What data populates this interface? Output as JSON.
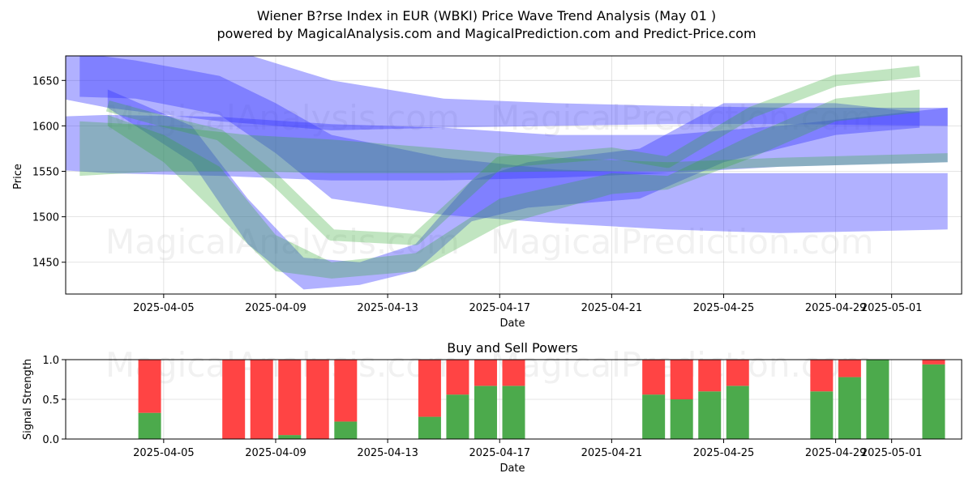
{
  "chart_data": [
    {
      "type": "area",
      "title": "Wiener B?rse Index in EUR (WBKI) Price Wave Trend Analysis (May 01 )",
      "subtitle": "powered by MagicalAnalysis.com and MagicalPrediction.com and Predict-Price.com",
      "xlabel": "Date",
      "ylabel": "Price",
      "x_tick_labels": [
        "2025-04-05",
        "2025-04-09",
        "2025-04-13",
        "2025-04-17",
        "2025-04-21",
        "2025-04-25",
        "2025-04-29",
        "2025-05-01"
      ],
      "y_tick_labels": [
        "1450",
        "1500",
        "1550",
        "1600",
        "1650"
      ],
      "xlim": [
        "2025-04-01 12:00",
        "2025-05-03 12:00"
      ],
      "ylim": [
        1415,
        1677
      ],
      "grid": true,
      "watermarks": [
        "MagicalAnalysis.com",
        "MagicalPrediction.com",
        "MagicalAnalysis.com",
        "MagicalPrediction.com"
      ],
      "colors": {
        "blue_band": "#3333ff",
        "green_band": "#33aa33"
      },
      "bands": [
        {
          "color": "blue",
          "x": [
            "2025-04-02",
            "2025-04-04",
            "2025-04-07",
            "2025-04-09",
            "2025-04-11",
            "2025-04-15",
            "2025-04-19",
            "2025-04-23",
            "2025-04-27",
            "2025-05-03"
          ],
          "upper": [
            1680,
            1672,
            1655,
            1625,
            1590,
            1565,
            1552,
            1548,
            1548,
            1548
          ],
          "lower": [
            1632,
            1630,
            1612,
            1570,
            1520,
            1502,
            1493,
            1486,
            1482,
            1486
          ]
        },
        {
          "color": "blue",
          "x": [
            "2025-04-01",
            "2025-04-03",
            "2025-04-07",
            "2025-04-11",
            "2025-04-15",
            "2025-04-19",
            "2025-04-23",
            "2025-04-27",
            "2025-05-03"
          ],
          "upper": [
            1690,
            1690,
            1688,
            1650,
            1630,
            1625,
            1622,
            1620,
            1620
          ],
          "lower": [
            1632,
            1620,
            1605,
            1595,
            1598,
            1600,
            1602,
            1602,
            1600
          ]
        },
        {
          "color": "blue",
          "x": [
            "2025-04-01",
            "2025-04-03",
            "2025-04-07",
            "2025-04-11",
            "2025-04-15",
            "2025-04-19",
            "2025-04-23",
            "2025-04-27",
            "2025-05-03"
          ],
          "upper": [
            1610,
            1612,
            1610,
            1602,
            1598,
            1590,
            1590,
            1600,
            1620
          ],
          "lower": [
            1552,
            1548,
            1545,
            1540,
            1540,
            1543,
            1548,
            1555,
            1560
          ]
        },
        {
          "color": "blue",
          "x": [
            "2025-04-03",
            "2025-04-06",
            "2025-04-08",
            "2025-04-10",
            "2025-04-12",
            "2025-04-14",
            "2025-04-16",
            "2025-04-18",
            "2025-04-22",
            "2025-04-25",
            "2025-04-29",
            "2025-05-02"
          ],
          "upper": [
            1640,
            1600,
            1520,
            1455,
            1450,
            1470,
            1540,
            1560,
            1575,
            1625,
            1625,
            1615
          ],
          "lower": [
            1620,
            1560,
            1470,
            1420,
            1425,
            1440,
            1495,
            1510,
            1520,
            1560,
            1590,
            1598
          ]
        },
        {
          "color": "green",
          "x": [
            "2025-04-02",
            "2025-04-05",
            "2025-04-08",
            "2025-04-11",
            "2025-04-15",
            "2025-04-19",
            "2025-04-23",
            "2025-04-27",
            "2025-05-03"
          ],
          "upper": [
            1605,
            1600,
            1590,
            1585,
            1575,
            1565,
            1560,
            1565,
            1570
          ],
          "lower": [
            1545,
            1550,
            1550,
            1548,
            1548,
            1550,
            1550,
            1555,
            1560
          ]
        },
        {
          "color": "green",
          "x": [
            "2025-04-03",
            "2025-04-05",
            "2025-04-07",
            "2025-04-09",
            "2025-04-11",
            "2025-04-14",
            "2025-04-17",
            "2025-04-21",
            "2025-04-23",
            "2025-04-26",
            "2025-04-29",
            "2025-05-02"
          ],
          "upper": [
            1622,
            1605,
            1590,
            1540,
            1480,
            1475,
            1560,
            1570,
            1560,
            1615,
            1650,
            1660
          ]
        },
        {
          "color": "green",
          "x": [
            "2025-04-03",
            "2025-04-05",
            "2025-04-07",
            "2025-04-09",
            "2025-04-11",
            "2025-04-14",
            "2025-04-17",
            "2025-04-21",
            "2025-04-23",
            "2025-04-26",
            "2025-04-29",
            "2025-05-02"
          ],
          "upper": [
            1612,
            1590,
            1555,
            1480,
            1450,
            1460,
            1520,
            1548,
            1545,
            1590,
            1630,
            1640
          ],
          "lower": [
            1600,
            1560,
            1500,
            1440,
            1432,
            1440,
            1490,
            1525,
            1530,
            1565,
            1605,
            1615
          ]
        }
      ]
    },
    {
      "type": "bar",
      "title": "Buy and Sell Powers",
      "xlabel": "Date",
      "ylabel": "Signal Strength",
      "x_tick_labels": [
        "2025-04-05",
        "2025-04-09",
        "2025-04-13",
        "2025-04-17",
        "2025-04-21",
        "2025-04-25",
        "2025-04-29",
        "2025-05-01"
      ],
      "y_tick_labels": [
        "0.0",
        "0.5",
        "1.0"
      ],
      "ylim": [
        0,
        1
      ],
      "grid": true,
      "colors": {
        "buy": "#4caa4c",
        "sell": "#ff4444"
      },
      "categories": [
        "2025-04-04",
        "2025-04-07",
        "2025-04-08",
        "2025-04-09",
        "2025-04-10",
        "2025-04-11",
        "2025-04-14",
        "2025-04-15",
        "2025-04-16",
        "2025-04-17",
        "2025-04-22",
        "2025-04-23",
        "2025-04-24",
        "2025-04-25",
        "2025-04-28",
        "2025-04-29",
        "2025-04-30",
        "2025-05-02"
      ],
      "series": [
        {
          "name": "Buy",
          "values": [
            0.33,
            0.0,
            0.0,
            0.05,
            0.0,
            0.22,
            0.28,
            0.56,
            0.67,
            0.67,
            0.56,
            0.5,
            0.6,
            0.67,
            0.6,
            0.78,
            1.0,
            0.94
          ]
        },
        {
          "name": "Sell",
          "values": [
            0.67,
            1.0,
            1.0,
            0.95,
            1.0,
            0.78,
            0.72,
            0.44,
            0.33,
            0.33,
            0.44,
            0.5,
            0.4,
            0.33,
            0.4,
            0.22,
            0.0,
            0.06
          ]
        }
      ]
    }
  ]
}
